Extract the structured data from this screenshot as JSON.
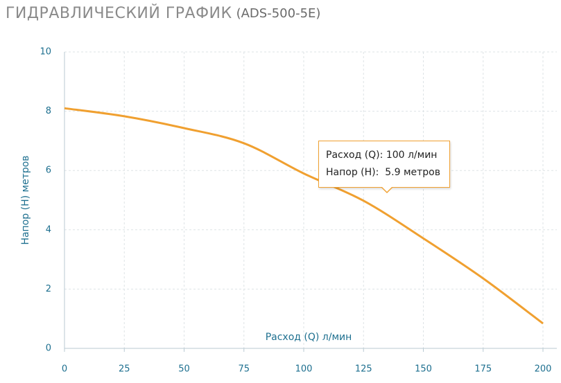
{
  "chart_data": {
    "type": "line",
    "title": "ГИДРАВЛИЧЕСКИЙ ГРАФИК",
    "model": "(ADS-500-5E)",
    "x_label": "Расход (Q) л/мин",
    "y_label": "Напор (H) метров",
    "x": [
      0,
      25,
      50,
      75,
      100,
      125,
      150,
      175,
      200
    ],
    "series": [
      {
        "name": "Напор",
        "color": "#f0a030",
        "values": [
          8.1,
          7.83,
          7.43,
          6.92,
          5.9,
          4.98,
          3.71,
          2.36,
          0.84
        ]
      }
    ],
    "xlim": [
      0,
      200
    ],
    "xticks": [
      0,
      25,
      50,
      75,
      100,
      125,
      150,
      175,
      200
    ],
    "ylim": [
      0,
      10
    ],
    "yticks": [
      0,
      2,
      4,
      6,
      8,
      10
    ],
    "grid": true,
    "tooltip": {
      "q_label": "Расход (Q):",
      "q_value": "100 л/мин",
      "h_label": "Напор (H):",
      "h_value": "5.9 метров"
    }
  }
}
